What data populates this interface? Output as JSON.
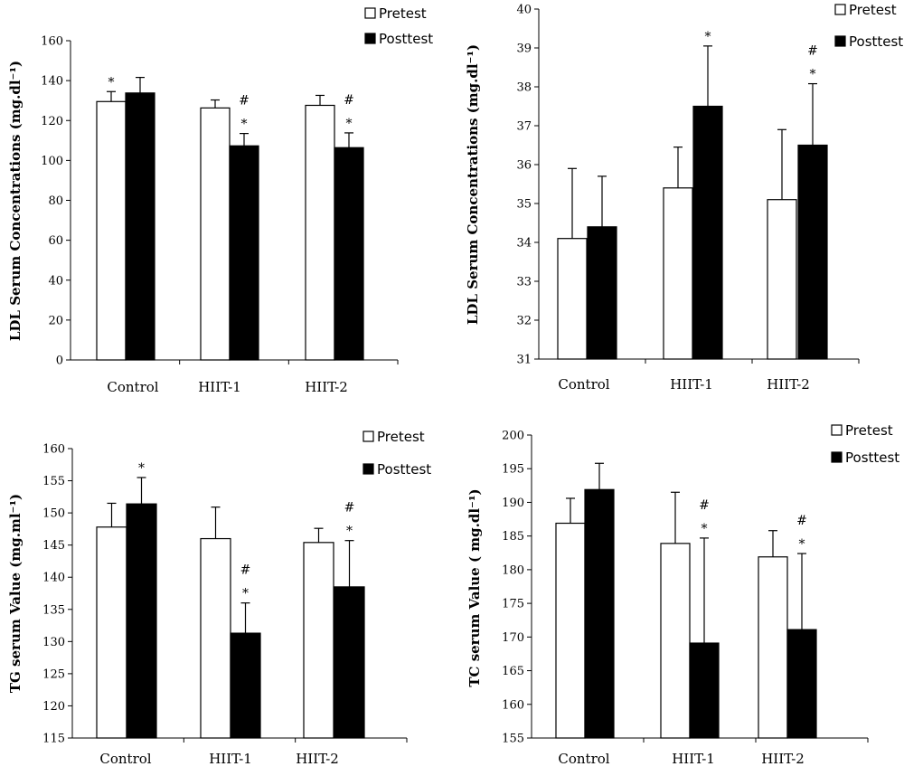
{
  "chart_data": [
    {
      "type": "bar",
      "id": "ldl_a",
      "categories": [
        "Control",
        "HIIT-1",
        "HIIT-2"
      ],
      "ylabel": "LDL Serum Concentrations (mg.dl⁻¹)",
      "ylim": [
        0,
        160
      ],
      "yticks": [
        0,
        20,
        40,
        60,
        80,
        100,
        120,
        140,
        160
      ],
      "legend": "top-right",
      "series": [
        {
          "name": "Pretest",
          "values": [
            129.5,
            126.3,
            127.6
          ],
          "errors": [
            5,
            4,
            5
          ],
          "color": "#ffffff"
        },
        {
          "name": "Posttest",
          "values": [
            133.8,
            107.3,
            106.4
          ],
          "errors": [
            7.8,
            6.2,
            7.4
          ],
          "color": "#000000"
        }
      ],
      "annotations": [
        {
          "category": 0,
          "series": 0,
          "marks": [
            "*"
          ]
        },
        {
          "category": 1,
          "series": 1,
          "marks": [
            "#",
            "*"
          ]
        },
        {
          "category": 2,
          "series": 1,
          "marks": [
            "#",
            "*"
          ]
        }
      ]
    },
    {
      "type": "bar",
      "id": "ldl_b",
      "categories": [
        "Control",
        "HIIT-1",
        "HIIT-2"
      ],
      "ylabel": "LDL Serum Concentrations (mg.dl⁻¹)",
      "ylim": [
        31,
        40
      ],
      "yticks": [
        31,
        32,
        33,
        34,
        35,
        36,
        37,
        38,
        39,
        40
      ],
      "legend": "top-right",
      "series": [
        {
          "name": "Pretest",
          "values": [
            34.1,
            35.4,
            35.1
          ],
          "errors": [
            1.8,
            1.05,
            1.8
          ],
          "color": "#ffffff"
        },
        {
          "name": "Posttest",
          "values": [
            34.4,
            37.5,
            36.5
          ],
          "errors": [
            1.3,
            1.55,
            1.58
          ],
          "color": "#000000"
        }
      ],
      "annotations": [
        {
          "category": 1,
          "series": 1,
          "marks": [
            "*"
          ]
        },
        {
          "category": 2,
          "series": 1,
          "marks": [
            "#",
            "*"
          ]
        }
      ]
    },
    {
      "type": "bar",
      "id": "tg",
      "categories": [
        "Control",
        "HIIT-1",
        "HIIT-2"
      ],
      "ylabel": "TG serum Value (mg.ml⁻¹)",
      "ylim": [
        115,
        160
      ],
      "yticks": [
        115,
        120,
        125,
        130,
        135,
        140,
        145,
        150,
        155,
        160
      ],
      "legend": "top-right",
      "series": [
        {
          "name": "Pretest",
          "values": [
            147.8,
            146.0,
            145.4
          ],
          "errors": [
            3.7,
            4.9,
            2.2
          ],
          "color": "#ffffff"
        },
        {
          "name": "Posttest",
          "values": [
            151.4,
            131.3,
            138.5
          ],
          "errors": [
            4.1,
            4.7,
            7.2
          ],
          "color": "#000000"
        }
      ],
      "annotations": [
        {
          "category": 0,
          "series": 1,
          "marks": [
            "*"
          ]
        },
        {
          "category": 1,
          "series": 1,
          "marks": [
            "#",
            "*"
          ]
        },
        {
          "category": 2,
          "series": 1,
          "marks": [
            "#",
            "*"
          ]
        }
      ]
    },
    {
      "type": "bar",
      "id": "tc",
      "categories": [
        "Control",
        "HIIT-1",
        "HIIT-2"
      ],
      "ylabel": "TC serum Value ( mg.dl⁻¹)",
      "ylim": [
        155,
        200
      ],
      "yticks": [
        155,
        160,
        165,
        170,
        175,
        180,
        185,
        190,
        195,
        200
      ],
      "legend": "top-right",
      "series": [
        {
          "name": "Pretest",
          "values": [
            186.9,
            183.9,
            181.9
          ],
          "errors": [
            3.7,
            7.6,
            3.9
          ],
          "color": "#ffffff"
        },
        {
          "name": "Posttest",
          "values": [
            191.9,
            169.1,
            171.1
          ],
          "errors": [
            3.9,
            15.6,
            11.3
          ],
          "color": "#000000"
        }
      ],
      "annotations": [
        {
          "category": 1,
          "series": 1,
          "marks": [
            "#",
            "*"
          ]
        },
        {
          "category": 2,
          "series": 1,
          "marks": [
            "#",
            "*"
          ]
        }
      ]
    }
  ]
}
